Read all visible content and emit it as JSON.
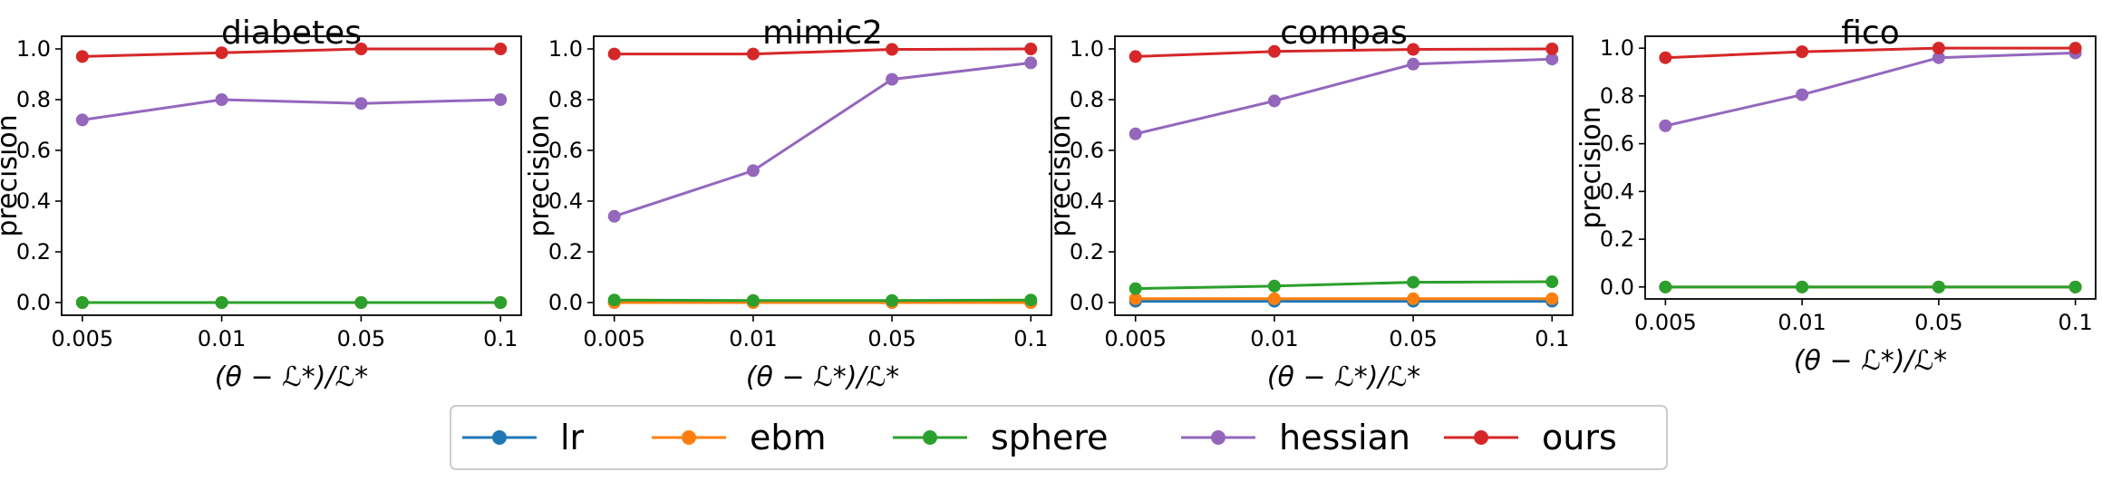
{
  "figure": {
    "legend": [
      {
        "name": "lr",
        "color": "#1f77b4"
      },
      {
        "name": "ebm",
        "color": "#ff7f0e"
      },
      {
        "name": "sphere",
        "color": "#2ca02c"
      },
      {
        "name": "hessian",
        "color": "#9467bd"
      },
      {
        "name": "ours",
        "color": "#d62728"
      }
    ]
  },
  "chart_data": [
    {
      "type": "line",
      "title": "diabetes",
      "xlabel": "(θ − ℒ*)/ℒ*",
      "ylabel": "precision",
      "categories": [
        "0.005",
        "0.01",
        "0.05",
        "0.1"
      ],
      "ylim": [
        -0.05,
        1.05
      ],
      "yticks": [
        "0.0",
        "0.2",
        "0.4",
        "0.6",
        "0.8",
        "1.0"
      ],
      "series": [
        {
          "name": "lr",
          "color": "#1f77b4",
          "values": [
            0.0,
            0.0,
            0.0,
            0.0
          ]
        },
        {
          "name": "ebm",
          "color": "#ff7f0e",
          "values": [
            0.0,
            0.0,
            0.0,
            0.0
          ]
        },
        {
          "name": "sphere",
          "color": "#2ca02c",
          "values": [
            0.0,
            0.0,
            0.0,
            0.0
          ]
        },
        {
          "name": "hessian",
          "color": "#9467bd",
          "values": [
            0.72,
            0.8,
            0.785,
            0.8
          ]
        },
        {
          "name": "ours",
          "color": "#d62728",
          "values": [
            0.97,
            0.985,
            1.0,
            1.0
          ]
        }
      ]
    },
    {
      "type": "line",
      "title": "mimic2",
      "xlabel": "(θ − ℒ*)/ℒ*",
      "ylabel": "precision",
      "categories": [
        "0.005",
        "0.01",
        "0.05",
        "0.1"
      ],
      "ylim": [
        -0.05,
        1.05
      ],
      "yticks": [
        "0.0",
        "0.2",
        "0.4",
        "0.6",
        "0.8",
        "1.0"
      ],
      "series": [
        {
          "name": "lr",
          "color": "#1f77b4",
          "values": [
            0.0,
            0.0,
            0.0,
            0.0
          ]
        },
        {
          "name": "ebm",
          "color": "#ff7f0e",
          "values": [
            0.0,
            0.0,
            0.0,
            0.0
          ]
        },
        {
          "name": "sphere",
          "color": "#2ca02c",
          "values": [
            0.01,
            0.008,
            0.008,
            0.01
          ]
        },
        {
          "name": "hessian",
          "color": "#9467bd",
          "values": [
            0.34,
            0.52,
            0.88,
            0.945
          ]
        },
        {
          "name": "ours",
          "color": "#d62728",
          "values": [
            0.98,
            0.98,
            0.998,
            1.0
          ]
        }
      ]
    },
    {
      "type": "line",
      "title": "compas",
      "xlabel": "(θ − ℒ*)/ℒ*",
      "ylabel": "precision",
      "categories": [
        "0.005",
        "0.01",
        "0.05",
        "0.1"
      ],
      "ylim": [
        -0.05,
        1.05
      ],
      "yticks": [
        "0.0",
        "0.2",
        "0.4",
        "0.6",
        "0.8",
        "1.0"
      ],
      "series": [
        {
          "name": "lr",
          "color": "#1f77b4",
          "values": [
            0.005,
            0.005,
            0.005,
            0.005
          ]
        },
        {
          "name": "ebm",
          "color": "#ff7f0e",
          "values": [
            0.015,
            0.015,
            0.015,
            0.015
          ]
        },
        {
          "name": "sphere",
          "color": "#2ca02c",
          "values": [
            0.055,
            0.065,
            0.08,
            0.082
          ]
        },
        {
          "name": "hessian",
          "color": "#9467bd",
          "values": [
            0.665,
            0.795,
            0.94,
            0.96
          ]
        },
        {
          "name": "ours",
          "color": "#d62728",
          "values": [
            0.97,
            0.99,
            0.998,
            1.0
          ]
        }
      ]
    },
    {
      "type": "line",
      "title": "fico",
      "xlabel": "(θ − ℒ*)/ℒ*",
      "ylabel": "precision",
      "categories": [
        "0.005",
        "0.01",
        "0.05",
        "0.1"
      ],
      "ylim": [
        -0.05,
        1.05
      ],
      "yticks": [
        "0.0",
        "0.2",
        "0.4",
        "0.6",
        "0.8",
        "1.0"
      ],
      "series": [
        {
          "name": "lr",
          "color": "#1f77b4",
          "values": [
            0.0,
            0.0,
            0.0,
            0.0
          ]
        },
        {
          "name": "ebm",
          "color": "#ff7f0e",
          "values": [
            0.0,
            0.0,
            0.0,
            0.0
          ]
        },
        {
          "name": "sphere",
          "color": "#2ca02c",
          "values": [
            0.0,
            0.0,
            0.0,
            0.0
          ]
        },
        {
          "name": "hessian",
          "color": "#9467bd",
          "values": [
            0.675,
            0.805,
            0.96,
            0.98
          ]
        },
        {
          "name": "ours",
          "color": "#d62728",
          "values": [
            0.96,
            0.985,
            1.0,
            1.0
          ]
        }
      ]
    }
  ]
}
